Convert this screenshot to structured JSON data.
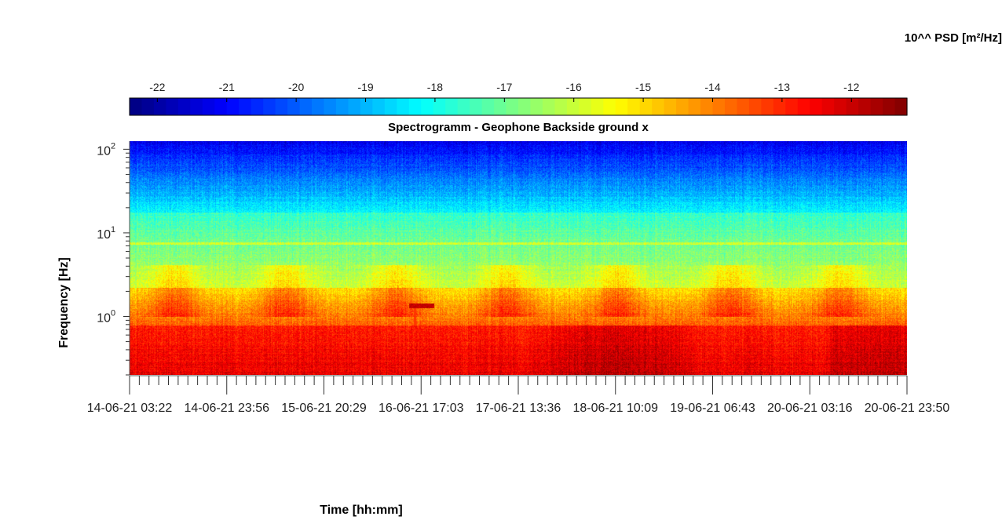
{
  "chart_data": {
    "type": "heatmap",
    "title": "Spectrogramm - Geophone Backside ground x",
    "xlabel": "Time [hh:mm]",
    "ylabel": "Frequency [Hz]",
    "colorbar": {
      "label": "10^^ PSD [m²/Hz]",
      "ticks": [
        -22,
        -21,
        -20,
        -19,
        -18,
        -17,
        -16,
        -15,
        -14,
        -13,
        -12
      ],
      "range": [
        -22.4,
        -11.2
      ],
      "colormap": "jet",
      "placement": "top"
    },
    "x_ticks": [
      "14-06-21  03:22",
      "14-06-21  23:56",
      "15-06-21  20:29",
      "16-06-21  17:03",
      "17-06-21  13:36",
      "18-06-21  10:09",
      "19-06-21  06:43",
      "20-06-21  03:16",
      "20-06-21  23:50"
    ],
    "y_scale": "log",
    "y_ticks": [
      "10^2",
      "10^1",
      "10^0"
    ],
    "y_range": [
      0.2,
      125
    ],
    "features": {
      "low_band_hz": [
        0.2,
        0.8
      ],
      "low_band_level": -12.3,
      "mid_band_level": -15.5,
      "high_band_level": -20.5,
      "horizontal_line_hz": 7.5,
      "daily_bursts_hz": [
        1,
        4
      ],
      "burst_centers_days": [
        0.4,
        1.4,
        2.4,
        3.4,
        4.4,
        5.4,
        6.4
      ],
      "transient_segment": {
        "frequency_hz": 1.35,
        "level": -12.2
      }
    }
  }
}
